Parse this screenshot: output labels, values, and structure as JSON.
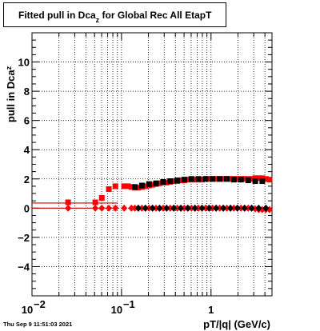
{
  "chart_data": {
    "type": "scatter",
    "title": "Fitted pull in Dca",
    "title_sub": "z",
    "title_rest": " for Global Rec All EtapT",
    "xlabel": "pT/|q| (GeV/c)",
    "ylabel_main": "pull in Dca",
    "ylabel_sub": "z",
    "x_scale": "log",
    "xlim": [
      0.01,
      4.8
    ],
    "ylim": [
      -6,
      12
    ],
    "grid": true,
    "x_ticks": [
      {
        "value": 0.01,
        "base": "10",
        "exp": "−2"
      },
      {
        "value": 0.1,
        "base": "10",
        "exp": "−1"
      },
      {
        "value": 1,
        "base": "1",
        "exp": ""
      }
    ],
    "y_ticks": [
      -4,
      -2,
      0,
      2,
      4,
      6,
      8,
      10
    ],
    "series": [
      {
        "marker": "square",
        "color": "#ff0000",
        "points": [
          [
            0.0253,
            0.4
          ],
          [
            0.0509,
            0.4
          ],
          [
            0.0602,
            0.7
          ],
          [
            0.0722,
            1.3
          ],
          [
            0.0855,
            1.5
          ],
          [
            0.107,
            1.5
          ],
          [
            0.118,
            1.5
          ],
          [
            0.129,
            1.45
          ],
          [
            0.141,
            1.4
          ],
          [
            0.154,
            1.4
          ],
          [
            0.169,
            1.45
          ],
          [
            0.185,
            1.5
          ],
          [
            0.203,
            1.55
          ],
          [
            0.222,
            1.6
          ],
          [
            0.243,
            1.65
          ],
          [
            0.266,
            1.7
          ],
          [
            0.292,
            1.75
          ],
          [
            0.319,
            1.75
          ],
          [
            0.35,
            1.8
          ],
          [
            0.383,
            1.85
          ],
          [
            0.42,
            1.85
          ],
          [
            0.46,
            1.9
          ],
          [
            0.503,
            1.9
          ],
          [
            0.551,
            1.95
          ],
          [
            0.604,
            1.95
          ],
          [
            0.661,
            1.95
          ],
          [
            0.724,
            1.95
          ],
          [
            0.793,
            1.95
          ],
          [
            0.869,
            2.0
          ],
          [
            0.951,
            2.0
          ],
          [
            1.04,
            2.0
          ],
          [
            1.14,
            2.0
          ],
          [
            1.25,
            2.0
          ],
          [
            1.37,
            2.0
          ],
          [
            1.5,
            2.0
          ],
          [
            1.65,
            2.0
          ],
          [
            1.8,
            2.0
          ],
          [
            1.97,
            2.0
          ],
          [
            2.16,
            2.0
          ],
          [
            2.37,
            2.0
          ],
          [
            2.6,
            2.0
          ],
          [
            2.84,
            2.0
          ],
          [
            3.12,
            2.05
          ],
          [
            3.41,
            2.05
          ],
          [
            3.74,
            2.05
          ],
          [
            4.1,
            2.0
          ],
          [
            4.5,
            1.95
          ]
        ]
      },
      {
        "marker": "diamond",
        "color": "#ff0000",
        "points": [
          [
            0.0253,
            0.0
          ],
          [
            0.0509,
            0.0
          ],
          [
            0.0602,
            0.0
          ],
          [
            0.0722,
            0.0
          ],
          [
            0.0855,
            0.0
          ],
          [
            0.107,
            0.0
          ],
          [
            0.129,
            0.0
          ],
          [
            0.141,
            0.0
          ],
          [
            0.154,
            0.0
          ],
          [
            0.169,
            0.0
          ],
          [
            0.185,
            0.0
          ],
          [
            0.203,
            0.0
          ],
          [
            0.222,
            0.0
          ],
          [
            0.243,
            0.0
          ],
          [
            0.266,
            0.0
          ],
          [
            0.292,
            0.0
          ],
          [
            0.319,
            0.0
          ],
          [
            0.35,
            0.0
          ],
          [
            0.383,
            0.0
          ],
          [
            0.42,
            0.0
          ],
          [
            0.46,
            0.0
          ],
          [
            0.503,
            0.0
          ],
          [
            0.551,
            0.0
          ],
          [
            0.604,
            0.0
          ],
          [
            0.661,
            0.0
          ],
          [
            0.724,
            0.0
          ],
          [
            0.793,
            0.0
          ],
          [
            0.869,
            0.0
          ],
          [
            0.951,
            0.0
          ],
          [
            1.04,
            0.0
          ],
          [
            1.14,
            0.0
          ],
          [
            1.25,
            0.0
          ],
          [
            1.37,
            0.0
          ],
          [
            1.5,
            0.0
          ],
          [
            1.65,
            0.0
          ],
          [
            1.8,
            0.0
          ],
          [
            1.97,
            0.0
          ],
          [
            2.16,
            0.0
          ],
          [
            2.37,
            0.0
          ],
          [
            2.6,
            0.0
          ],
          [
            2.84,
            0.0
          ],
          [
            3.12,
            -0.05
          ],
          [
            3.41,
            -0.1
          ],
          [
            3.74,
            -0.1
          ],
          [
            4.1,
            -0.1
          ],
          [
            4.5,
            -0.1
          ]
        ]
      },
      {
        "marker": "square",
        "color": "#000000",
        "points": [
          [
            0.141,
            1.45
          ],
          [
            0.169,
            1.55
          ],
          [
            0.203,
            1.65
          ],
          [
            0.243,
            1.7
          ],
          [
            0.292,
            1.8
          ],
          [
            0.35,
            1.85
          ],
          [
            0.42,
            1.9
          ],
          [
            0.503,
            1.95
          ],
          [
            0.604,
            2.0
          ],
          [
            0.724,
            2.0
          ],
          [
            0.869,
            2.0
          ],
          [
            1.04,
            2.0
          ],
          [
            1.25,
            2.0
          ],
          [
            1.5,
            2.0
          ],
          [
            1.8,
            1.95
          ],
          [
            2.16,
            1.95
          ],
          [
            2.6,
            1.9
          ],
          [
            3.12,
            1.85
          ],
          [
            3.74,
            1.85
          ]
        ]
      },
      {
        "marker": "diamond",
        "color": "#000000",
        "points": [
          [
            0.154,
            0.0
          ],
          [
            0.185,
            0.0
          ],
          [
            0.222,
            0.0
          ],
          [
            0.266,
            0.0
          ],
          [
            0.319,
            0.0
          ],
          [
            0.383,
            0.0
          ],
          [
            0.46,
            0.0
          ],
          [
            0.551,
            0.0
          ],
          [
            0.661,
            0.0
          ],
          [
            0.793,
            0.0
          ],
          [
            0.951,
            0.0
          ],
          [
            1.14,
            0.0
          ],
          [
            1.37,
            0.0
          ],
          [
            1.65,
            0.0
          ],
          [
            1.97,
            0.0
          ],
          [
            2.37,
            0.0
          ],
          [
            2.84,
            0.0
          ],
          [
            3.41,
            0.0
          ],
          [
            4.1,
            0.0
          ]
        ]
      }
    ],
    "ref_lines": [
      {
        "y": 0.35,
        "color": "#cc0000"
      },
      {
        "y": 0.0,
        "color": "#cc0000"
      }
    ]
  },
  "footer_text": "Thu Sep  9 11:51:03 2021"
}
